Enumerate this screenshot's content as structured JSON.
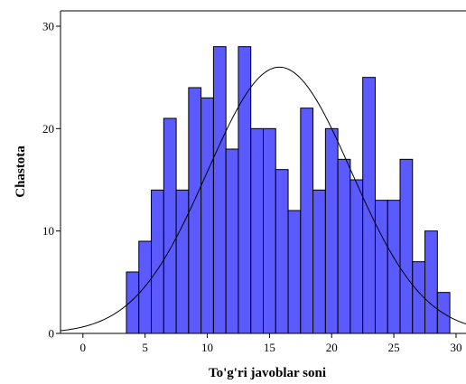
{
  "chart_data": {
    "type": "bar",
    "subtype": "histogram-with-normal-curve",
    "xlabel": "To'g'ri javoblar soni",
    "ylabel": "Chastota",
    "xlim": [
      -1.8,
      30.8
    ],
    "ylim": [
      0,
      31.5
    ],
    "x_ticks": [
      0,
      5,
      10,
      15,
      20,
      25,
      30
    ],
    "y_ticks": [
      0,
      10,
      20,
      30
    ],
    "bin_width": 1,
    "bins": [
      {
        "x": 4,
        "count": 6
      },
      {
        "x": 5,
        "count": 9
      },
      {
        "x": 6,
        "count": 14
      },
      {
        "x": 7,
        "count": 21
      },
      {
        "x": 8,
        "count": 14
      },
      {
        "x": 9,
        "count": 24
      },
      {
        "x": 10,
        "count": 23
      },
      {
        "x": 11,
        "count": 28
      },
      {
        "x": 12,
        "count": 18
      },
      {
        "x": 13,
        "count": 28
      },
      {
        "x": 14,
        "count": 20
      },
      {
        "x": 15,
        "count": 20
      },
      {
        "x": 16,
        "count": 16
      },
      {
        "x": 17,
        "count": 12
      },
      {
        "x": 18,
        "count": 22
      },
      {
        "x": 19,
        "count": 14
      },
      {
        "x": 20,
        "count": 20
      },
      {
        "x": 21,
        "count": 17
      },
      {
        "x": 22,
        "count": 15
      },
      {
        "x": 23,
        "count": 25
      },
      {
        "x": 24,
        "count": 13
      },
      {
        "x": 25,
        "count": 13
      },
      {
        "x": 26,
        "count": 17
      },
      {
        "x": 27,
        "count": 7
      },
      {
        "x": 28,
        "count": 10
      },
      {
        "x": 29,
        "count": 4
      }
    ],
    "normal_curve": {
      "mean": 15.8,
      "sd": 5.8,
      "peak": 26
    },
    "bar_color": "#5a5aff",
    "bar_edge_color": "#000000",
    "curve_color": "#000000",
    "grid": false,
    "legend": "none"
  }
}
